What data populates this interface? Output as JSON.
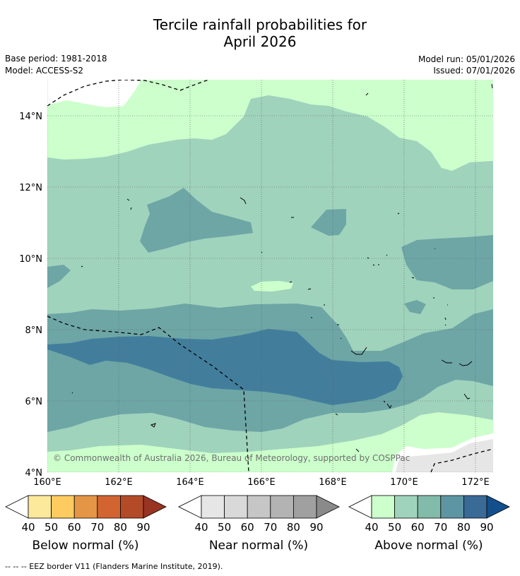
{
  "title": {
    "line1": "Tercile rainfall probabilities for",
    "line2": "April 2026"
  },
  "meta": {
    "base_period": "Base period: 1981-2018",
    "model": "Model: ACCESS-S2",
    "model_run": "Model run: 05/01/2026",
    "issued": "Issued: 07/01/2026"
  },
  "map": {
    "lon_ticks": [
      "160°E",
      "162°E",
      "164°E",
      "166°E",
      "168°E",
      "170°E",
      "172°E"
    ],
    "lat_ticks": [
      "14°N",
      "12°N",
      "10°N",
      "8°N",
      "6°N",
      "4°N"
    ],
    "copyright": "© Commonwealth of Australia 2026, Bureau of Meteorology, supported by COSPPac",
    "colors": {
      "above_40_50": "#ccffcc",
      "above_50_60": "#a0d3bc",
      "above_60_70": "#82bba9",
      "above_70_80": "#6ea6a6",
      "above_80_90": "#427e9c",
      "near_40_50": "#e6e6e6",
      "background": "#ffffff"
    }
  },
  "colorbars": [
    {
      "title": "Below normal (%)",
      "labels": [
        "40",
        "50",
        "60",
        "70",
        "80",
        "90"
      ],
      "colors": [
        "#fde99c",
        "#fdcb60",
        "#e49545",
        "#d26432",
        "#b44b28",
        "#993322"
      ]
    },
    {
      "title": "Near normal (%)",
      "labels": [
        "40",
        "50",
        "60",
        "70",
        "80",
        "90"
      ],
      "colors": [
        "#e6e6e6",
        "#d9d9d9",
        "#c6c6c6",
        "#b3b3b3",
        "#a0a0a0",
        "#8a8a8a"
      ]
    },
    {
      "title": "Above normal (%)",
      "labels": [
        "40",
        "50",
        "60",
        "70",
        "80",
        "90"
      ],
      "colors": [
        "#ccffcc",
        "#a0d3bc",
        "#82bba9",
        "#5e95a3",
        "#3a6a96",
        "#134f8c"
      ]
    }
  ],
  "footer": "--  --  -- EEZ border V11 (Flanders Marine Institute, 2019)."
}
